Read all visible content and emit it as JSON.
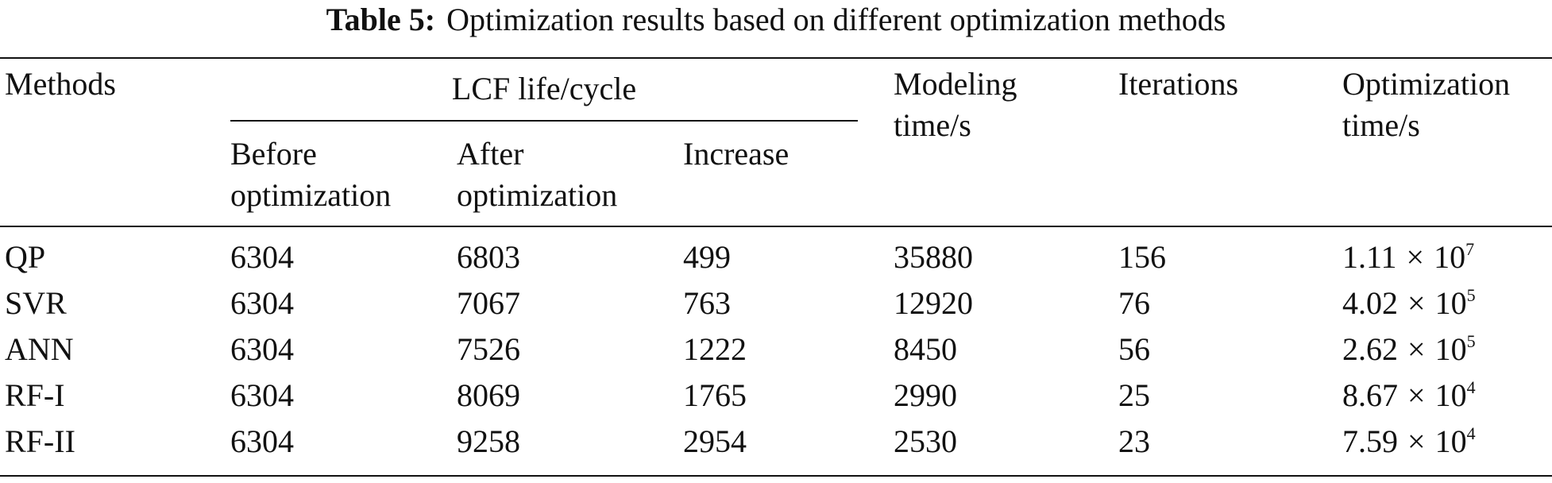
{
  "caption": {
    "label": "Table 5:",
    "text": "Optimization results based on different optimization methods"
  },
  "header": {
    "methods": "Methods",
    "lcf_group": "LCF life/cycle",
    "before": [
      "Before",
      "optimization"
    ],
    "after": [
      "After",
      "optimization"
    ],
    "increase": "Increase",
    "modeling": [
      "Modeling",
      "time/s"
    ],
    "iterations": "Iterations",
    "optimization_time": [
      "Optimization",
      "time/s"
    ]
  },
  "rows": [
    {
      "method": "QP",
      "before": "6304",
      "after": "6803",
      "increase": "499",
      "modeling": "35880",
      "iterations": "156",
      "opt_mantissa": "1.11",
      "opt_exp": "7"
    },
    {
      "method": "SVR",
      "before": "6304",
      "after": "7067",
      "increase": "763",
      "modeling": "12920",
      "iterations": "76",
      "opt_mantissa": "4.02",
      "opt_exp": "5"
    },
    {
      "method": "ANN",
      "before": "6304",
      "after": "7526",
      "increase": "1222",
      "modeling": "8450",
      "iterations": "56",
      "opt_mantissa": "2.62",
      "opt_exp": "5"
    },
    {
      "method": "RF-I",
      "before": "6304",
      "after": "8069",
      "increase": "1765",
      "modeling": "2990",
      "iterations": "25",
      "opt_mantissa": "8.67",
      "opt_exp": "4"
    },
    {
      "method": "RF-II",
      "before": "6304",
      "after": "9258",
      "increase": "2954",
      "modeling": "2530",
      "iterations": "23",
      "opt_mantissa": "7.59",
      "opt_exp": "4"
    }
  ],
  "symbols": {
    "times": "×",
    "base": "10"
  }
}
